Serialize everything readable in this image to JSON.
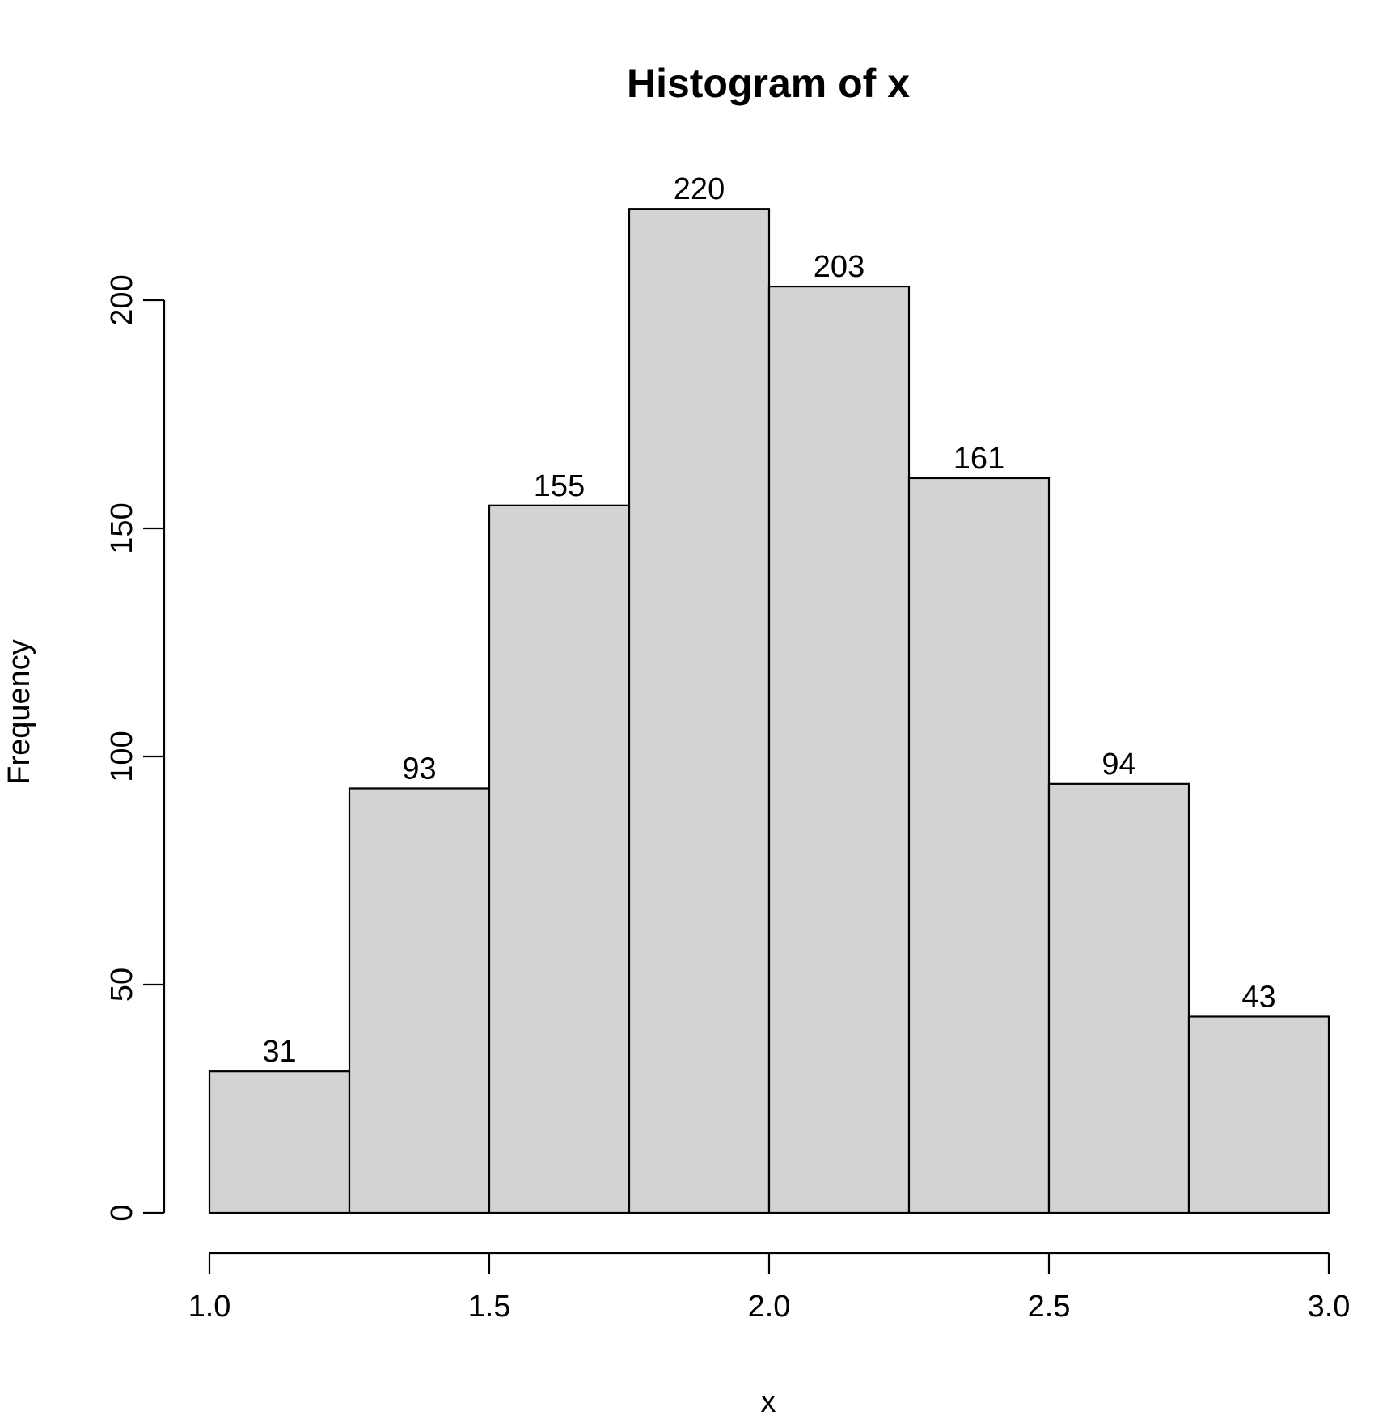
{
  "chart_data": {
    "type": "bar",
    "title": "Histogram of x",
    "xlabel": "x",
    "ylabel": "Frequency",
    "bins": [
      {
        "start": 1.0,
        "end": 1.25,
        "value": 31
      },
      {
        "start": 1.25,
        "end": 1.5,
        "value": 93
      },
      {
        "start": 1.5,
        "end": 1.75,
        "value": 155
      },
      {
        "start": 1.75,
        "end": 2.0,
        "value": 220
      },
      {
        "start": 2.0,
        "end": 2.25,
        "value": 203
      },
      {
        "start": 2.25,
        "end": 2.5,
        "value": 161
      },
      {
        "start": 2.5,
        "end": 2.75,
        "value": 94
      },
      {
        "start": 2.75,
        "end": 3.0,
        "value": 43
      }
    ],
    "value_labels": [
      "31",
      "93",
      "155",
      "220",
      "203",
      "161",
      "94",
      "43"
    ],
    "xlim": [
      1.0,
      3.0
    ],
    "ylim": [
      0,
      220
    ],
    "x_ticks": [
      1.0,
      1.5,
      2.0,
      2.5,
      3.0
    ],
    "x_tick_labels": [
      "1.0",
      "1.5",
      "2.0",
      "2.5",
      "3.0"
    ],
    "y_ticks": [
      0,
      50,
      100,
      150,
      200
    ],
    "y_tick_labels": [
      "0",
      "50",
      "100",
      "150",
      "200"
    ],
    "grid": false,
    "legend": "none",
    "colors": {
      "bar_fill": "#d3d3d3",
      "bar_stroke": "#000000",
      "axis": "#000000",
      "background": "#ffffff"
    }
  }
}
